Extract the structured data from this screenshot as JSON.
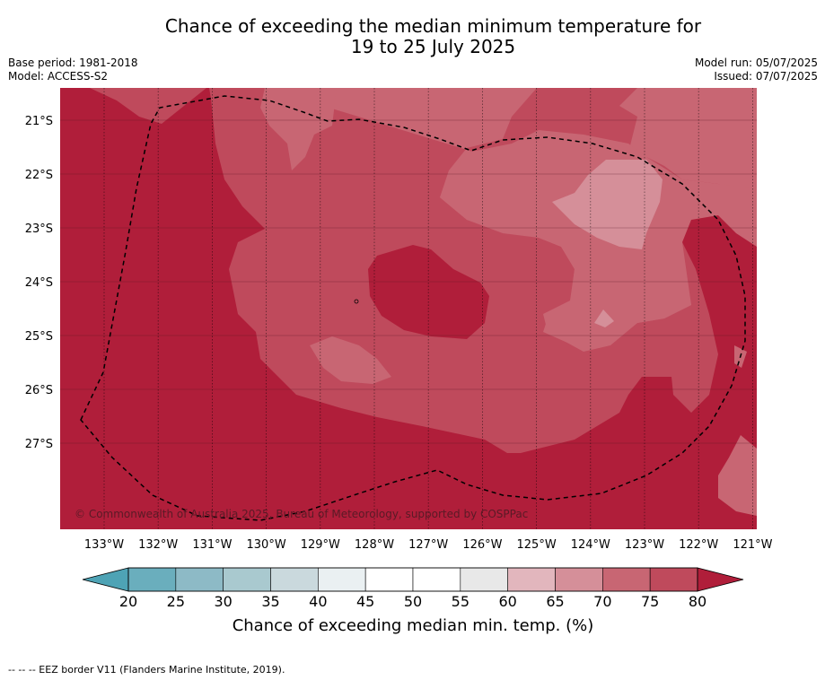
{
  "title_line1": "Chance of exceeding the median minimum temperature for",
  "title_line2": "19 to 25 July 2025",
  "base_period": "Base period: 1981-2018",
  "model": "Model: ACCESS-S2",
  "model_run": "Model run: 05/07/2025",
  "issued": "Issued: 07/07/2025",
  "copyright": "© Commonwealth of Australia 2025, Bureau of Meteorology, supported by COSPPac",
  "footer": "--  --  -- EEZ border V11 (Flanders Marine Institute, 2019).",
  "colorbar": {
    "title": "Chance of exceeding median min. temp. (%)",
    "ticks": [
      "20",
      "25",
      "30",
      "35",
      "40",
      "45",
      "50",
      "55",
      "60",
      "65",
      "70",
      "75",
      "80"
    ],
    "colors": [
      "#6aaebd",
      "#8dbac6",
      "#a9c9cf",
      "#cad9dd",
      "#eaf0f2",
      "#ffffff",
      "#ffffff",
      "#e8e8e8",
      "#e2b6bd",
      "#d58f99",
      "#c86673",
      "#bf4a5c"
    ],
    "under_color": "#4ea3b5",
    "over_color": "#b01e3a"
  },
  "chart_data": {
    "type": "heatmap",
    "lon_labels": [
      "133°W",
      "132°W",
      "131°W",
      "130°W",
      "129°W",
      "128°W",
      "127°W",
      "126°W",
      "125°W",
      "124°W",
      "123°W",
      "122°W",
      "121°W"
    ],
    "lat_labels": [
      "21°S",
      "22°S",
      "23°S",
      "24°S",
      "25°S",
      "26°S",
      "27°S"
    ],
    "grid": true,
    "value_unit": "%",
    "levels": {
      "above_80": "#b01e3a",
      "75_80": "#bf4a5c",
      "70_75": "#c86673",
      "65_70": "#d58f99"
    }
  }
}
